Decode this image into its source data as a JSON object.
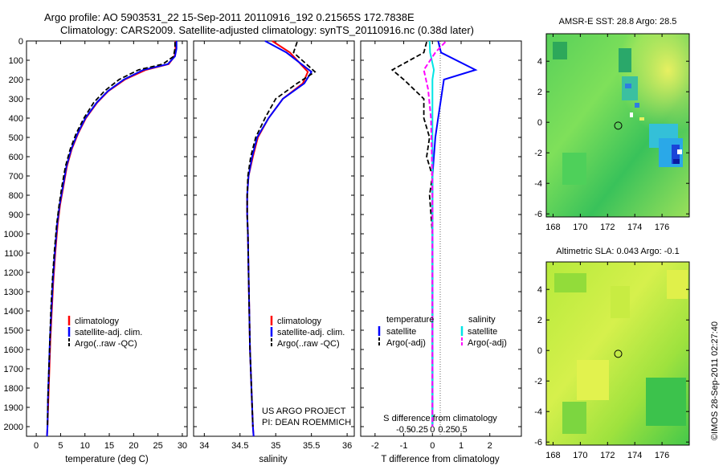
{
  "header": {
    "title_line1": "Argo profile: AO 5903531_22 15-Sep-2011 20110916_192 0.21565S 172.7838E",
    "title_line2": "Climatology: CARS2009. Satellite-adjusted climatology: synTS_20110916.nc (0.38d later)"
  },
  "side_stamp": "©IMOS 28-Sep-2011 02:27:40",
  "colors": {
    "climatology": "#ff0000",
    "satellite": "#0000ff",
    "argo": "#000000",
    "salinity_satellite": "#00e5e5",
    "salinity_argo": "#ff00ff"
  },
  "depth_axis": {
    "ylim": [
      0,
      2050
    ],
    "ticks": [
      "0",
      "100",
      "200",
      "300",
      "400",
      "500",
      "600",
      "700",
      "800",
      "900",
      "1000",
      "1100",
      "1200",
      "1300",
      "1400",
      "1500",
      "1600",
      "1700",
      "1800",
      "1900",
      "2000"
    ]
  },
  "panel_temperature": {
    "xlabel": "temperature (deg C)",
    "xticks": [
      "0",
      "5",
      "10",
      "15",
      "20",
      "25",
      "30"
    ],
    "legend": [
      "climatology",
      "satellite-adj. clim.",
      "Argo(..raw -QC)"
    ]
  },
  "panel_salinity": {
    "xlabel": "salinity",
    "xticks": [
      "34",
      "34.5",
      "35",
      "35.5",
      "36"
    ],
    "legend": [
      "climatology",
      "satellite-adj. clim.",
      "Argo(..raw -QC)"
    ],
    "note_line1": "US ARGO PROJECT",
    "note_line2": "PI: DEAN ROEMMICH"
  },
  "panel_difference": {
    "xlabel": "T difference from climatology",
    "xticks_T": [
      "-2",
      "-1",
      "0",
      "1",
      "2"
    ],
    "s_title": "S difference from climatology",
    "xticks_S": [
      "-0.5",
      "-0.25",
      "0",
      "0.25",
      "0.5"
    ],
    "legend_temperature_title": "temperature",
    "legend_salinity_title": "salinity",
    "legend_entries": [
      "satellite",
      "Argo(-adj)"
    ]
  },
  "map_sst": {
    "title": "AMSR-E SST: 28.8 Argo: 28.5",
    "xticks": [
      "168",
      "170",
      "172",
      "174",
      "176"
    ],
    "yticks": [
      "4",
      "2",
      "0",
      "-2",
      "-4",
      "-6"
    ]
  },
  "map_sla": {
    "title": "Altimetric SLA: 0.043 Argo: -0.1",
    "xticks": [
      "168",
      "170",
      "172",
      "174",
      "176"
    ],
    "yticks": [
      "4",
      "2",
      "0",
      "-2",
      "-4",
      "-6"
    ]
  },
  "chart_data": [
    {
      "type": "line",
      "title": "",
      "xlabel": "temperature (deg C)",
      "ylabel": "",
      "xlim": [
        -2,
        31
      ],
      "ylim": [
        0,
        2050
      ],
      "series": [
        {
          "name": "climatology",
          "x": [
            28.6,
            28.6,
            28.4,
            27.2,
            22.5,
            18.2,
            14.8,
            12.5,
            10.2,
            8.6,
            7.3,
            6.3,
            5.6,
            4.9,
            4.4,
            3.9,
            3.5,
            3.2,
            2.9,
            2.7,
            2.5,
            2.3,
            2.2
          ],
          "y": [
            0,
            40,
            80,
            120,
            150,
            200,
            260,
            320,
            400,
            480,
            560,
            650,
            750,
            850,
            950,
            1100,
            1250,
            1400,
            1550,
            1700,
            1850,
            2000,
            2050
          ]
        },
        {
          "name": "satellite-adj. clim.",
          "x": [
            28.8,
            28.8,
            28.5,
            27.0,
            22.0,
            18.0,
            14.7,
            12.4,
            10.1,
            8.5,
            7.2,
            6.2,
            5.5,
            4.8,
            4.3,
            3.8,
            3.4,
            3.1,
            2.8,
            2.6,
            2.4,
            2.3,
            2.2
          ],
          "y": [
            0,
            40,
            80,
            120,
            150,
            200,
            260,
            320,
            400,
            480,
            560,
            650,
            750,
            850,
            950,
            1100,
            1250,
            1400,
            1550,
            1700,
            1850,
            2000,
            2050
          ]
        },
        {
          "name": "Argo(..raw -QC)",
          "x": [
            28.5,
            28.5,
            28.2,
            26.0,
            21.0,
            17.0,
            14.0,
            11.8,
            9.8,
            8.2,
            7.0,
            6.0,
            5.3,
            4.7,
            4.2,
            3.7,
            3.3,
            3.0,
            2.8,
            2.6,
            2.4,
            2.3
          ],
          "y": [
            5,
            40,
            80,
            120,
            150,
            200,
            260,
            320,
            400,
            480,
            560,
            650,
            750,
            850,
            950,
            1100,
            1250,
            1400,
            1550,
            1700,
            1850,
            2000
          ]
        }
      ]
    },
    {
      "type": "line",
      "title": "",
      "xlabel": "salinity",
      "ylabel": "",
      "xlim": [
        33.85,
        36.1
      ],
      "ylim": [
        0,
        2050
      ],
      "series": [
        {
          "name": "climatology",
          "x": [
            34.95,
            35.2,
            35.45,
            35.38,
            35.1,
            34.9,
            34.75,
            34.68,
            34.62,
            34.6,
            34.6,
            34.61,
            34.62,
            34.63,
            34.64,
            34.65,
            34.66,
            34.67,
            34.68,
            34.69
          ],
          "y": [
            0,
            60,
            160,
            220,
            300,
            400,
            500,
            600,
            700,
            800,
            900,
            1000,
            1200,
            1400,
            1600,
            1700,
            1800,
            1900,
            2000,
            2050
          ]
        },
        {
          "name": "satellite-adj. clim.",
          "x": [
            34.85,
            35.15,
            35.5,
            35.4,
            35.1,
            34.9,
            34.74,
            34.67,
            34.62,
            34.6,
            34.6,
            34.61,
            34.62,
            34.63,
            34.64,
            34.65,
            34.66,
            34.67,
            34.68,
            34.69
          ],
          "y": [
            0,
            60,
            160,
            220,
            300,
            400,
            500,
            600,
            700,
            800,
            900,
            1000,
            1200,
            1400,
            1600,
            1700,
            1800,
            1900,
            2000,
            2050
          ]
        },
        {
          "name": "Argo(..raw -QC)",
          "x": [
            35.3,
            35.25,
            35.55,
            35.3,
            35.0,
            34.85,
            34.72,
            34.65,
            34.61,
            34.6,
            34.6,
            34.61,
            34.62,
            34.63,
            34.64,
            34.65,
            34.66,
            34.67,
            34.68
          ],
          "y": [
            5,
            60,
            160,
            220,
            300,
            400,
            500,
            600,
            700,
            800,
            900,
            1000,
            1200,
            1400,
            1600,
            1700,
            1800,
            1900,
            2000
          ]
        }
      ]
    },
    {
      "type": "line",
      "title": "",
      "xlabel": "T difference from climatology",
      "ylabel": "",
      "xlim": [
        -2.5,
        3.1
      ],
      "ylim": [
        0,
        2050
      ],
      "series": [
        {
          "name": "temperature satellite",
          "x": [
            0.2,
            0.3,
            1.5,
            0.4,
            0.3,
            0.2,
            0.1,
            0.05,
            0,
            0,
            0,
            0,
            0,
            0,
            0,
            0
          ],
          "y": [
            0,
            60,
            150,
            200,
            300,
            400,
            500,
            600,
            700,
            800,
            1000,
            1200,
            1400,
            1600,
            1800,
            2000
          ]
        },
        {
          "name": "temperature Argo(-adj)",
          "x": [
            -0.2,
            -0.3,
            -1.4,
            -1.0,
            -0.3,
            -0.3,
            -0.1,
            -0.2,
            0,
            -0.1,
            0,
            0,
            0,
            0,
            0,
            0
          ],
          "y": [
            5,
            60,
            150,
            200,
            300,
            400,
            500,
            600,
            700,
            800,
            1000,
            1200,
            1400,
            1600,
            1800,
            2000
          ]
        },
        {
          "name": "salinity satellite",
          "x": [
            -0.1,
            -0.08,
            0.05,
            0,
            0,
            0,
            0,
            0,
            0,
            0
          ],
          "y": [
            0,
            60,
            150,
            200,
            400,
            600,
            800,
            1200,
            1600,
            2000
          ]
        },
        {
          "name": "salinity Argo(-adj)",
          "x": [
            0.45,
            0.1,
            -0.3,
            -0.15,
            -0.05,
            -0.02,
            0,
            0,
            0,
            0
          ],
          "y": [
            5,
            60,
            150,
            250,
            400,
            600,
            800,
            1200,
            1600,
            2000
          ]
        }
      ]
    },
    {
      "type": "heatmap",
      "title": "AMSR-E SST: 28.8 Argo: 28.5",
      "xlim": [
        167.5,
        178
      ],
      "ylim": [
        -6.2,
        5.8
      ],
      "xticks": [
        168,
        170,
        172,
        174,
        176
      ],
      "yticks": [
        4,
        2,
        0,
        -2,
        -4,
        -6
      ],
      "argo_position": {
        "lon": 172.78,
        "lat": -0.22
      }
    },
    {
      "type": "heatmap",
      "title": "Altimetric SLA: 0.043 Argo: -0.1",
      "xlim": [
        167.5,
        178
      ],
      "ylim": [
        -6.2,
        5.8
      ],
      "xticks": [
        168,
        170,
        172,
        174,
        176
      ],
      "yticks": [
        4,
        2,
        0,
        -2,
        -4,
        -6
      ],
      "argo_position": {
        "lon": 172.78,
        "lat": -0.22
      }
    }
  ]
}
